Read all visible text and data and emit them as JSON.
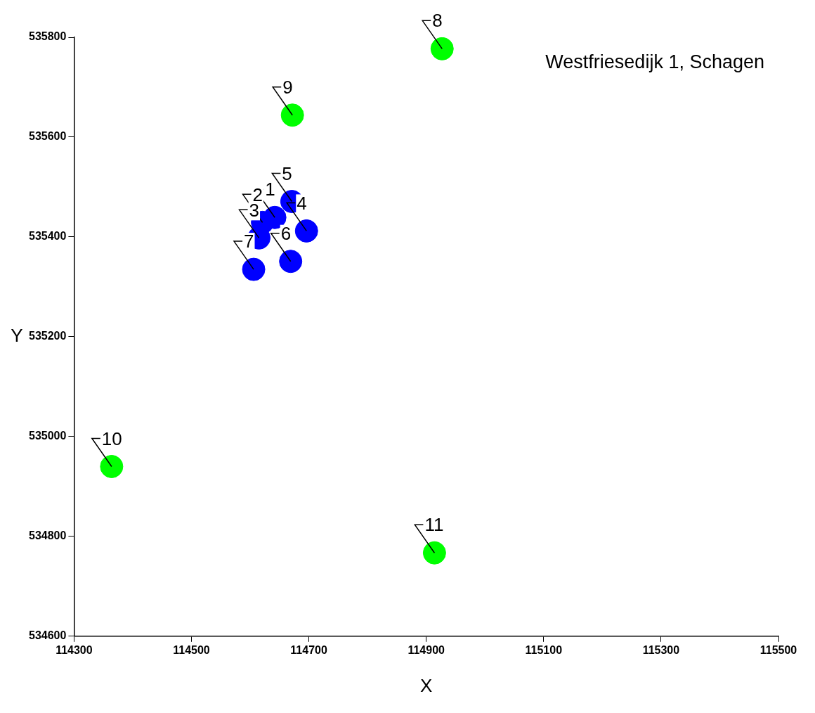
{
  "chart_data": {
    "type": "scatter",
    "title": "Westfriesedijk 1, Schagen",
    "xlabel": "X",
    "ylabel": "Y",
    "xlim": [
      114300,
      115500
    ],
    "xticks": [
      114300,
      114500,
      114700,
      114900,
      115100,
      115300,
      115500
    ],
    "ylim": [
      534600,
      535800
    ],
    "yticks": [
      534600,
      534800,
      535000,
      535200,
      535400,
      535600,
      535800
    ],
    "grid": false,
    "legend": false,
    "marker": "circle",
    "series": [
      {
        "color": "#0000ff",
        "x": [
          114642,
          114621,
          114615,
          114696,
          114671,
          114669,
          114606
        ],
        "values": [
          535439,
          535429,
          535398,
          535412,
          535471,
          535351,
          535335
        ]
      },
      {
        "color": "#00ff00",
        "x": [
          114927,
          114672,
          114364,
          114914
        ],
        "values": [
          535777,
          535644,
          534940,
          534767
        ]
      }
    ],
    "annotations": [
      {
        "text": "1",
        "x": 114642,
        "y": 535439
      },
      {
        "text": "2",
        "x": 114621,
        "y": 535429
      },
      {
        "text": "3",
        "x": 114615,
        "y": 535398
      },
      {
        "text": "4",
        "x": 114696,
        "y": 535412
      },
      {
        "text": "5",
        "x": 114671,
        "y": 535471
      },
      {
        "text": "6",
        "x": 114669,
        "y": 535351
      },
      {
        "text": "7",
        "x": 114606,
        "y": 535335
      },
      {
        "text": "8",
        "x": 114927,
        "y": 535777
      },
      {
        "text": "9",
        "x": 114672,
        "y": 535644
      },
      {
        "text": "10",
        "x": 114364,
        "y": 534940
      },
      {
        "text": "11",
        "x": 114914,
        "y": 534767
      }
    ]
  }
}
